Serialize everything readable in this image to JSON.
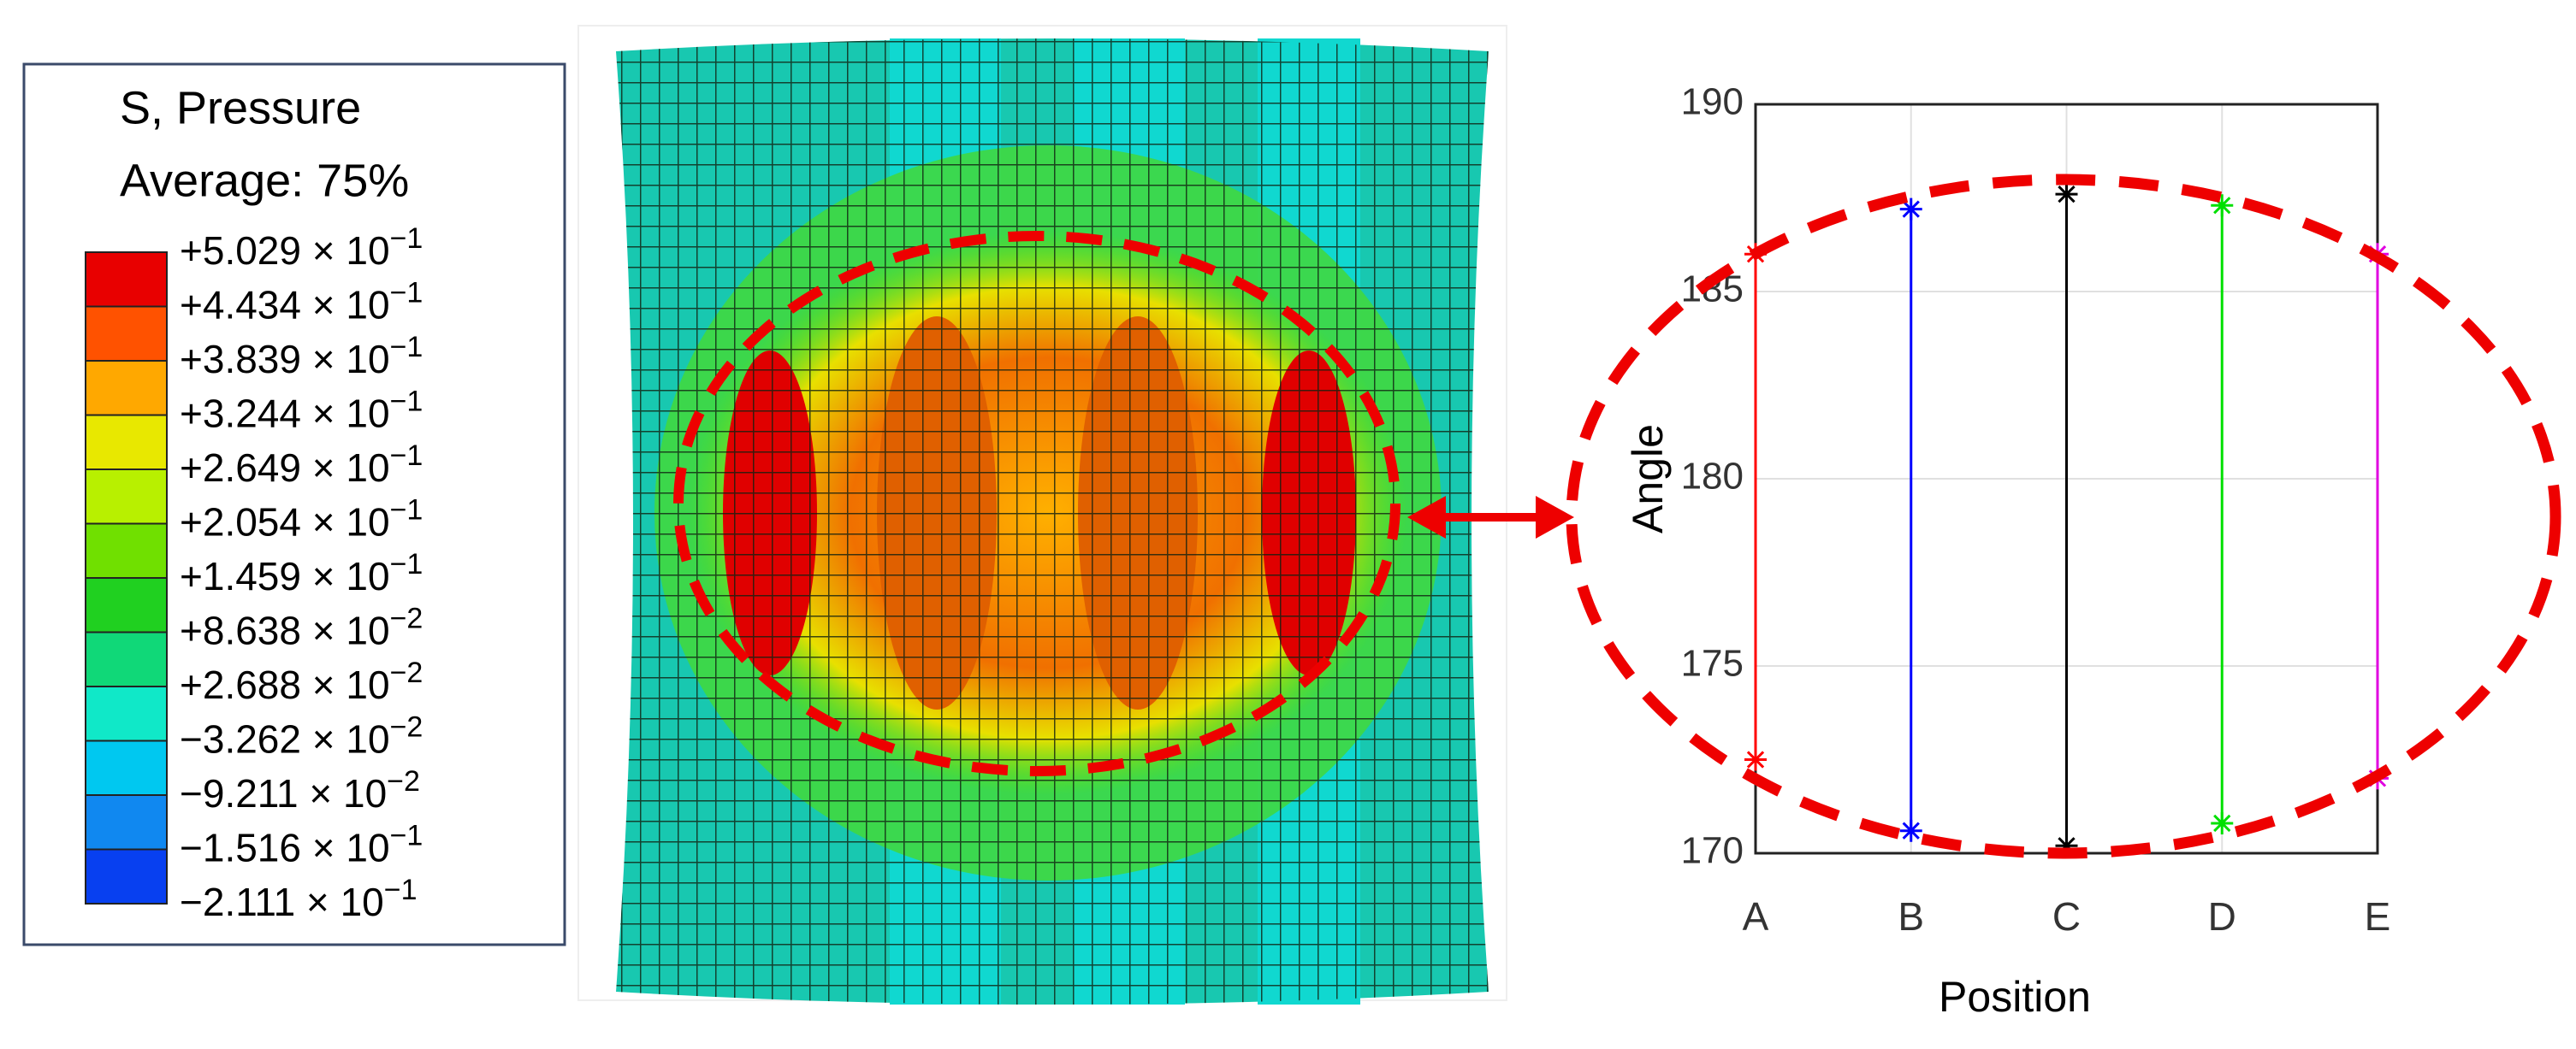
{
  "legend": {
    "title": "S, Pressure",
    "subtitle": "Average: 75%",
    "labels": [
      {
        "text": "+5.029 × 10",
        "exp": "−1"
      },
      {
        "text": "+4.434 × 10",
        "exp": "−1"
      },
      {
        "text": "+3.839 × 10",
        "exp": "−1"
      },
      {
        "text": "+3.244 × 10",
        "exp": "−1"
      },
      {
        "text": "+2.649 × 10",
        "exp": "−1"
      },
      {
        "text": "+2.054 × 10",
        "exp": "−1"
      },
      {
        "text": "+1.459 × 10",
        "exp": "−1"
      },
      {
        "text": "+8.638 × 10",
        "exp": "−2"
      },
      {
        "text": "+2.688 × 10",
        "exp": "−2"
      },
      {
        "text": "−3.262 × 10",
        "exp": "−2"
      },
      {
        "text": "−9.211 × 10",
        "exp": "−2"
      },
      {
        "text": "−1.516 × 10",
        "exp": "−1"
      },
      {
        "text": "−2.111 × 10",
        "exp": "−1"
      }
    ],
    "colors": [
      "#e80000",
      "#ff5200",
      "#ffa800",
      "#e8e800",
      "#b8f000",
      "#70e000",
      "#20d020",
      "#10d878",
      "#10e8c8",
      "#00c8f0",
      "#1088f0",
      "#0840f0"
    ]
  },
  "chart_data": {
    "type": "range",
    "categories": [
      "A",
      "B",
      "C",
      "D",
      "E"
    ],
    "low": [
      172.5,
      170.6,
      170.2,
      170.8,
      172
    ],
    "high": [
      186,
      187.2,
      187.6,
      187.3,
      186
    ],
    "colors": [
      "#ff0000",
      "#0000ff",
      "#000000",
      "#00e000",
      "#e000e0"
    ],
    "ylim": [
      170,
      190
    ],
    "yticks": [
      170,
      175,
      180,
      185,
      190
    ],
    "xlabel": "Position",
    "ylabel": "Angle",
    "grid": true
  }
}
